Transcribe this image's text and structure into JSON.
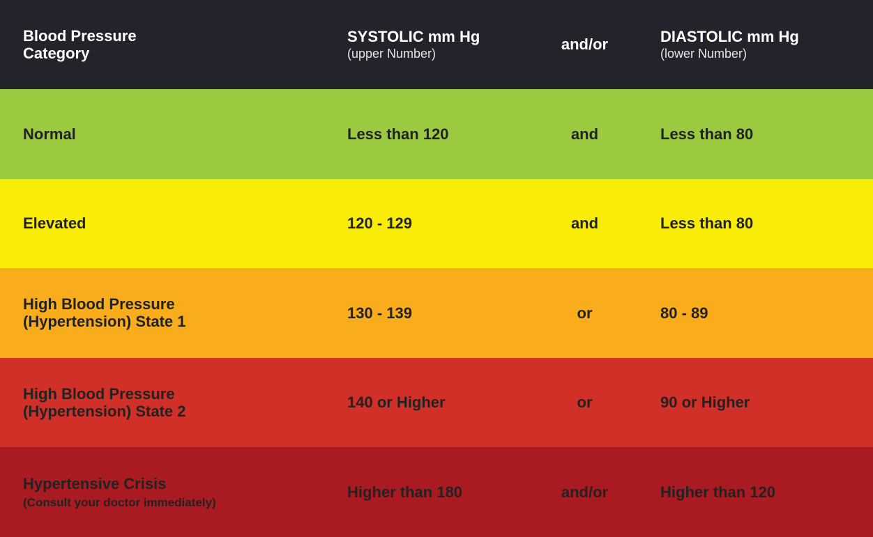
{
  "header": {
    "category": "Blood Pressure Category",
    "systolic_title": "SYSTOLIC mm Hg",
    "systolic_sub": "(upper Number)",
    "connector": "and/or",
    "diastolic_title": "DIASTOLIC mm Hg",
    "diastolic_sub": "(lower Number)",
    "background": "#22232b"
  },
  "rows": [
    {
      "category": "Normal",
      "note": "",
      "systolic": "Less than 120",
      "connector": "and",
      "diastolic": "Less than 80",
      "color": "#9bc93f"
    },
    {
      "category": "Elevated",
      "note": "",
      "systolic": "120 - 129",
      "connector": "and",
      "diastolic": "Less than 80",
      "color": "#f9ec07"
    },
    {
      "category": "High Blood Pressure (Hypertension) State 1",
      "note": "",
      "systolic": "130 - 139",
      "connector": "or",
      "diastolic": "80 - 89",
      "color": "#f9ad1c"
    },
    {
      "category": "High Blood Pressure (Hypertension) State 2",
      "note": "",
      "systolic": "140 or Higher",
      "connector": "or",
      "diastolic": "90 or Higher",
      "color": "#d03027"
    },
    {
      "category": "Hypertensive Crisis",
      "note": "(Consult your doctor immediately)",
      "systolic": "Higher than 180",
      "connector": "and/or",
      "diastolic": "Higher than 120",
      "color": "#a91b21"
    }
  ]
}
